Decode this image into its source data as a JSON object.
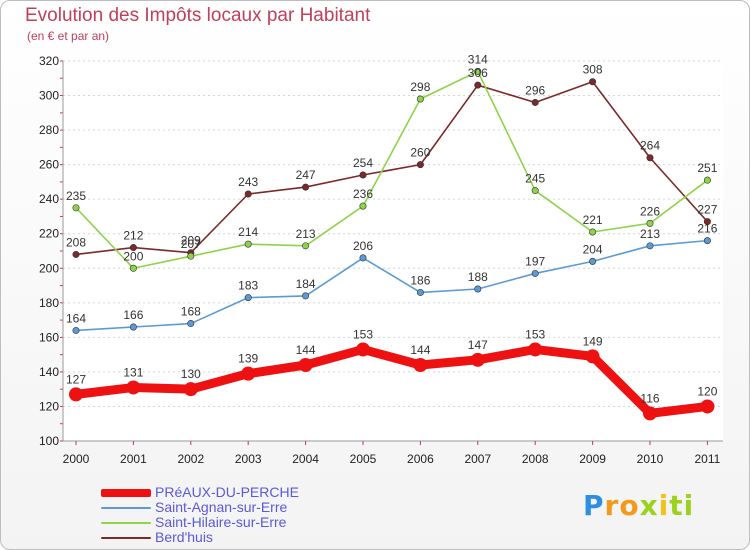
{
  "chart_data": {
    "type": "line",
    "title": "Evolution des Impôts locaux par Habitant",
    "subtitle": "(en € et par an)",
    "x": [
      "2000",
      "2001",
      "2002",
      "2003",
      "2004",
      "2005",
      "2006",
      "2007",
      "2008",
      "2009",
      "2010",
      "2011"
    ],
    "yticks": [
      100,
      120,
      140,
      160,
      180,
      200,
      220,
      240,
      260,
      280,
      300,
      320
    ],
    "ylim": [
      100,
      320
    ],
    "grid": "horizontal",
    "legend_position": "bottom-left",
    "series": [
      {
        "name": "PRéAUX-DU-PERCHE",
        "color": "#ee1111",
        "values": [
          127,
          131,
          130,
          139,
          144,
          153,
          144,
          147,
          153,
          149,
          116,
          120
        ]
      },
      {
        "name": "Saint-Agnan-sur-Erre",
        "color": "#5b9bd5",
        "values": [
          164,
          166,
          168,
          183,
          184,
          206,
          186,
          188,
          197,
          204,
          213,
          216
        ]
      },
      {
        "name": "Saint-Hilaire-sur-Erre",
        "color": "#8ed34a",
        "values": [
          235,
          200,
          207,
          214,
          213,
          236,
          298,
          314,
          245,
          221,
          226,
          251
        ]
      },
      {
        "name": "Berd'huis",
        "color": "#7a2a2a",
        "values": [
          208,
          212,
          209,
          243,
          247,
          254,
          260,
          306,
          296,
          308,
          264,
          227
        ]
      }
    ]
  },
  "logo": {
    "letters": [
      "P",
      "r",
      "o",
      "x",
      "i",
      "t",
      "i"
    ],
    "colors": [
      "#2e8ee0",
      "#f29a1a",
      "#f29a1a",
      "#9bd21f",
      "#f2c21a",
      "#9bd21f",
      "#9bd21f"
    ]
  }
}
